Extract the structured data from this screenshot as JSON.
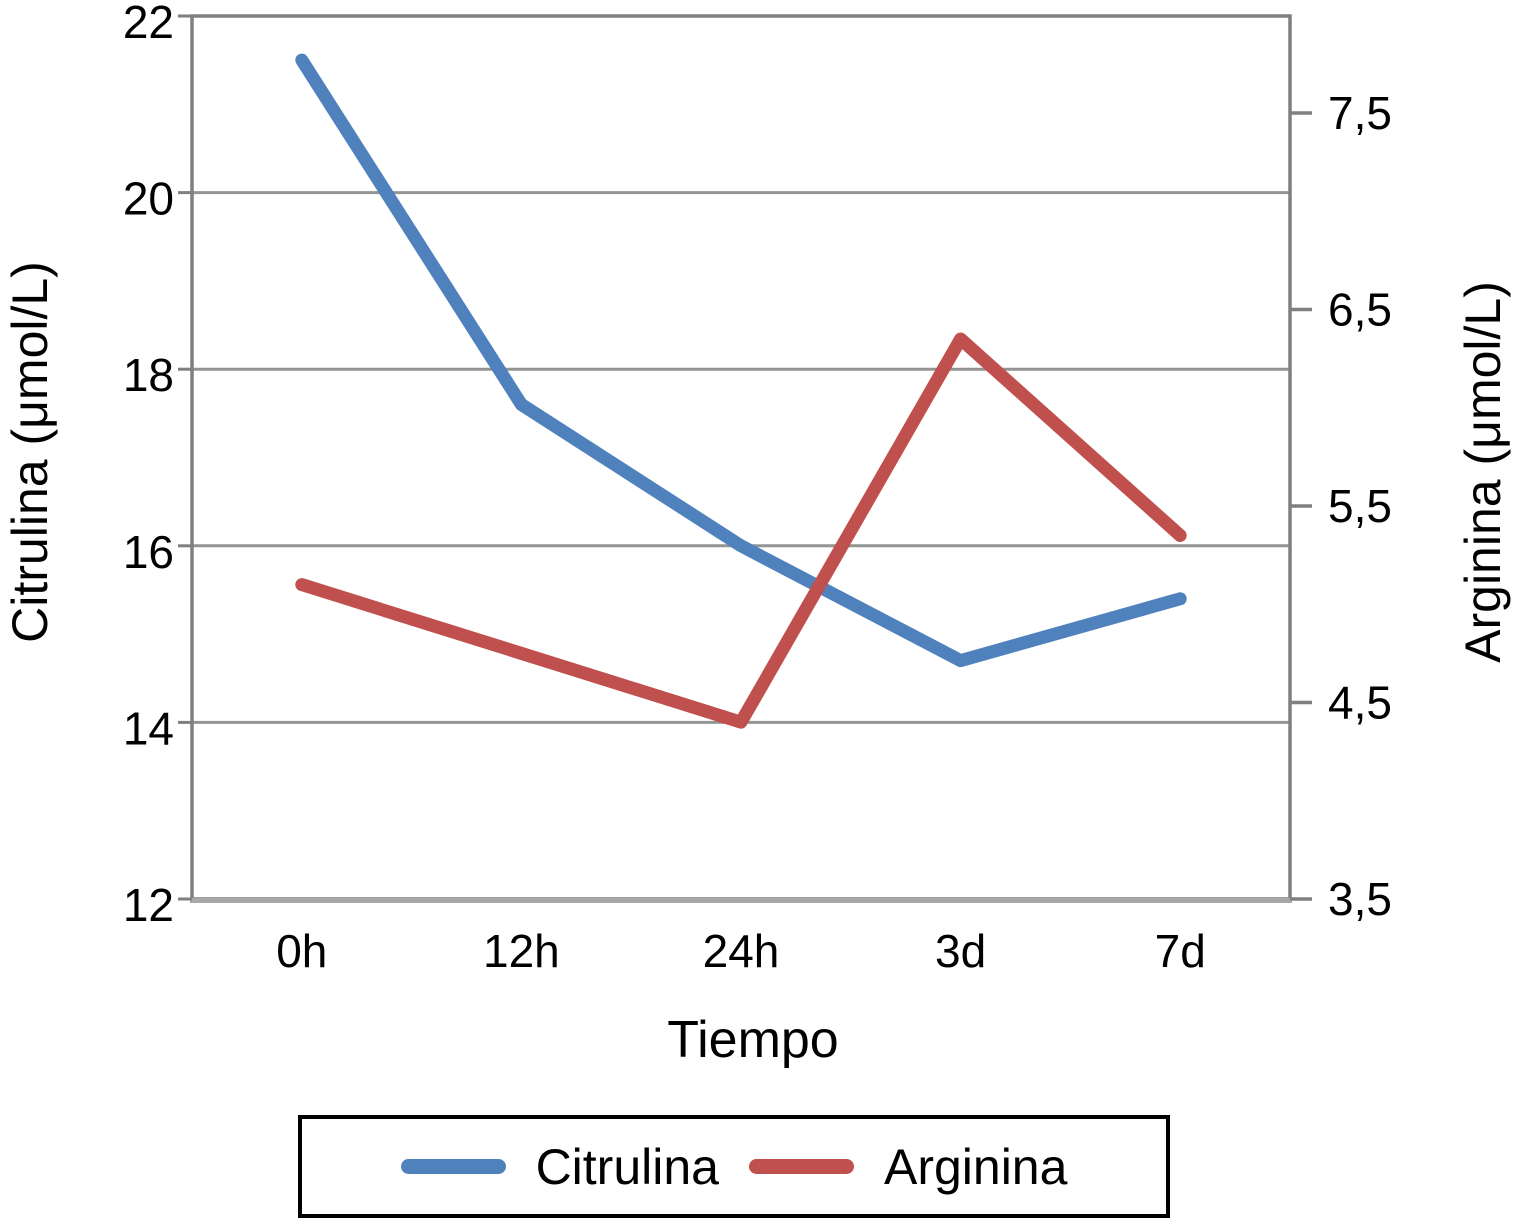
{
  "chart_data": {
    "type": "line",
    "categories": [
      "0h",
      "12h",
      "24h",
      "3d",
      "7d"
    ],
    "series": [
      {
        "name": "Citrulina",
        "axis": "left",
        "color": "#4F81BD",
        "values": [
          21.5,
          17.6,
          16.0,
          14.7,
          15.4
        ]
      },
      {
        "name": "Arginina",
        "axis": "right",
        "color": "#C0504D",
        "values": [
          5.1,
          4.75,
          4.4,
          6.35,
          5.35
        ]
      }
    ],
    "xlabel": "Tiempo",
    "left_axis": {
      "label": "Citrulina (μmol/L)",
      "tick_labels": [
        "12",
        "14",
        "16",
        "18",
        "20",
        "22"
      ],
      "tick_values": [
        12,
        14,
        16,
        18,
        20,
        22
      ],
      "range": [
        12,
        22
      ]
    },
    "right_axis": {
      "label": "Arginina (μmol/L)",
      "tick_labels": [
        "3,5",
        "4,5",
        "5,5",
        "6,5",
        "7,5"
      ],
      "tick_values": [
        3.5,
        4.5,
        5.5,
        6.5,
        7.5
      ],
      "range": [
        3.5,
        7.5
      ]
    },
    "legend": {
      "position": "bottom",
      "entries": [
        "Citrulina",
        "Arginina"
      ]
    },
    "grid": true,
    "colors": {
      "grid": "#949494",
      "border": "#7f7f7f",
      "bottom_border": "#a8a8a8",
      "text": "#000000",
      "background": "#ffffff"
    }
  }
}
